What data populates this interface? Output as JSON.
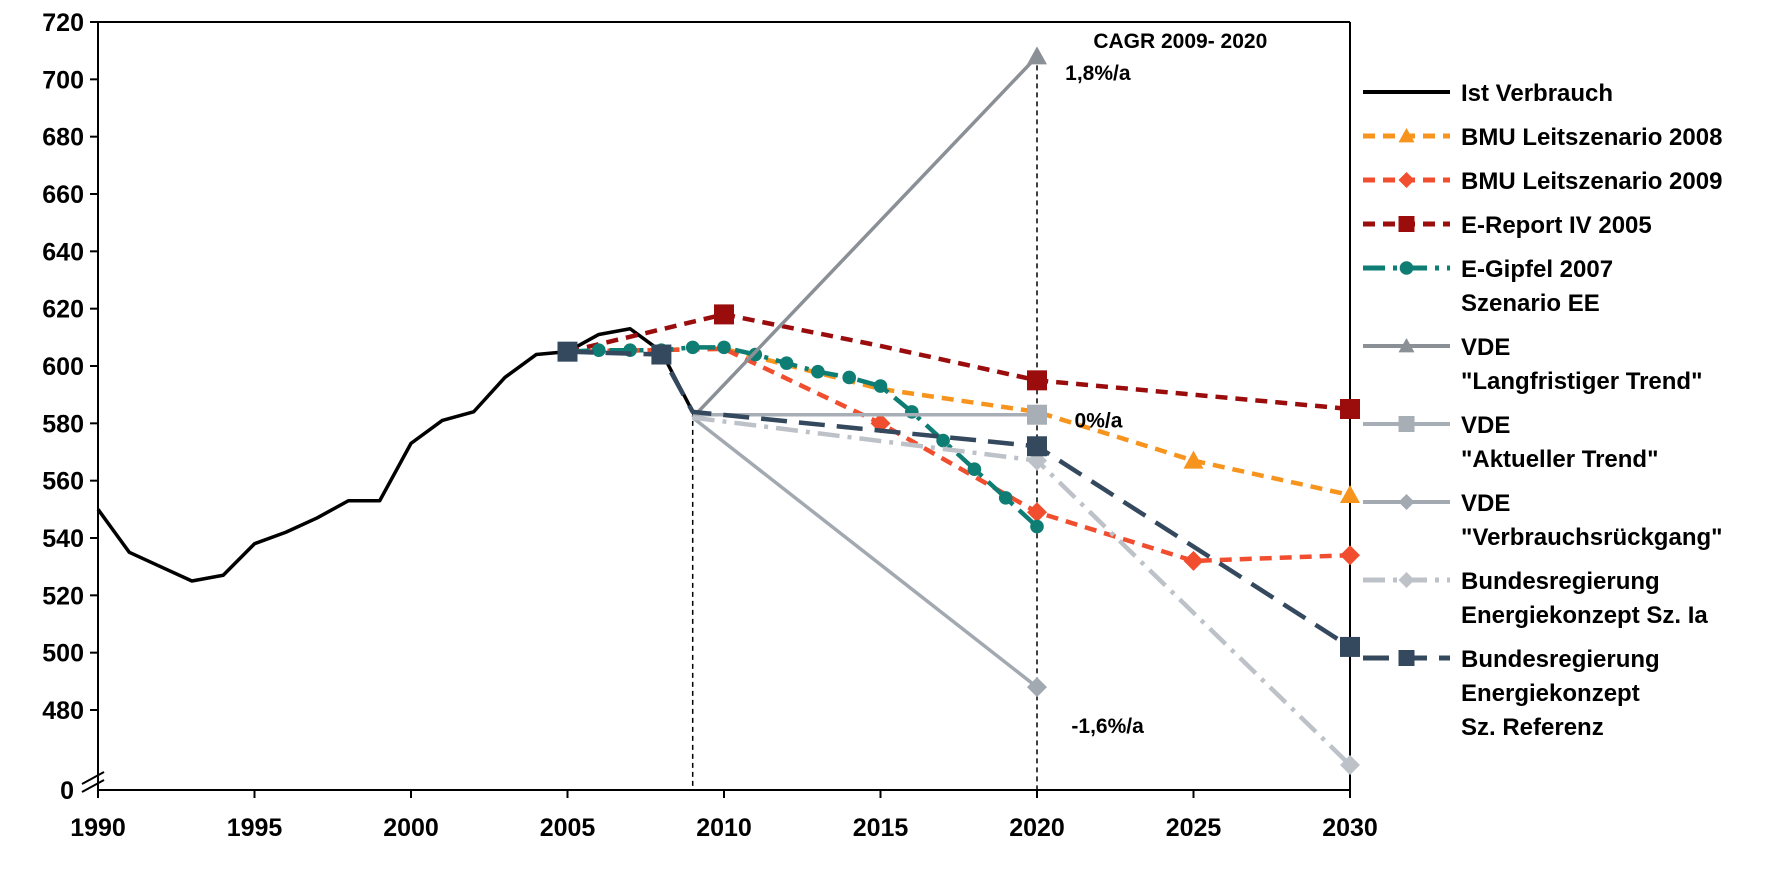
{
  "chart_data": {
    "type": "line",
    "title": "",
    "xlabel": "",
    "ylabel": "",
    "xlim": [
      1990,
      2030
    ],
    "ylim": [
      480,
      720
    ],
    "y_axis_break": {
      "label": "0",
      "note": "axis break between 0 and 480"
    },
    "x_ticks": [
      "1990",
      "1995",
      "2000",
      "2005",
      "2010",
      "2015",
      "2020",
      "2025",
      "2030"
    ],
    "y_ticks": [
      "480",
      "500",
      "520",
      "540",
      "560",
      "580",
      "600",
      "620",
      "640",
      "660",
      "680",
      "700",
      "720"
    ],
    "grid": false,
    "legend_position": "right",
    "vertical_reference_lines": [
      2009,
      2020
    ],
    "series": [
      {
        "name": "Ist Verbrauch",
        "color": "#000000",
        "dash": "solid",
        "marker": "none",
        "x": [
          1990,
          1991,
          1992,
          1993,
          1994,
          1995,
          1996,
          1997,
          1998,
          1999,
          2000,
          2001,
          2002,
          2003,
          2004,
          2005,
          2006,
          2007,
          2008,
          2009
        ],
        "y": [
          550,
          535,
          530,
          525,
          527,
          538,
          542,
          547,
          553,
          553,
          573,
          581,
          584,
          596,
          604,
          605,
          611,
          613,
          605,
          584
        ]
      },
      {
        "name": "BMU Leitszenario 2008",
        "color": "#F7941D",
        "dash": "dash",
        "marker": "triangle",
        "x": [
          2005,
          2010,
          2015,
          2020,
          2025,
          2030
        ],
        "y": [
          605,
          606,
          592,
          584,
          567,
          555
        ],
        "marker_x": [
          2025,
          2030
        ]
      },
      {
        "name": "BMU Leitszenario 2009",
        "color": "#F04E2E",
        "dash": "dash",
        "marker": "diamond",
        "x": [
          2005,
          2010,
          2015,
          2020,
          2025,
          2030
        ],
        "y": [
          605,
          606,
          580,
          549,
          532,
          534
        ],
        "marker_x": [
          2015,
          2020,
          2025,
          2030
        ]
      },
      {
        "name": "E-Report IV 2005",
        "color": "#9B0D0D",
        "dash": "dash",
        "marker": "square",
        "x": [
          2005,
          2010,
          2015,
          2020,
          2025,
          2030
        ],
        "y": [
          605,
          618,
          607,
          595,
          590,
          585
        ],
        "marker_x": [
          2010,
          2020,
          2030
        ]
      },
      {
        "name": "E-Gipfel 2007\nSzenario EE",
        "color": "#0E7D74",
        "dash": "dashdot",
        "marker": "circle",
        "x": [
          2005,
          2006,
          2007,
          2008,
          2009,
          2010,
          2011,
          2012,
          2013,
          2014,
          2015,
          2016,
          2017,
          2018,
          2019,
          2020
        ],
        "y": [
          605,
          605.5,
          605.5,
          605.5,
          606.5,
          606.5,
          604,
          601,
          598,
          596,
          593,
          584,
          574,
          564,
          554,
          544
        ],
        "marker_x": [
          2005,
          2006,
          2007,
          2008,
          2009,
          2010,
          2011,
          2012,
          2013,
          2014,
          2015,
          2016,
          2017,
          2018,
          2019,
          2020
        ]
      },
      {
        "name": "VDE\n\"Langfristiger Trend\"",
        "color": "#8B9097",
        "dash": "solid",
        "marker": "triangle",
        "x": [
          2009,
          2020
        ],
        "y": [
          582,
          708
        ],
        "marker_x": [
          2020
        ]
      },
      {
        "name": "VDE\n\"Aktueller Trend\"",
        "color": "#A7AEB5",
        "dash": "solid",
        "marker": "square",
        "x": [
          2009,
          2020
        ],
        "y": [
          583,
          583
        ],
        "marker_x": [
          2020
        ]
      },
      {
        "name": "VDE\n\"Verbrauchsrückgang\"",
        "color": "#A2A9B1",
        "dash": "solid",
        "marker": "diamond",
        "x": [
          2009,
          2020
        ],
        "y": [
          582,
          488
        ],
        "marker_x": [
          2020
        ]
      },
      {
        "name": "Bundesregierung\nEnergiekonzept Sz. Ia",
        "color": "#BDC2C8",
        "dash": "dashdot",
        "marker": "diamond",
        "x": [
          2009,
          2020,
          2030
        ],
        "y": [
          582,
          567,
          "below_480"
        ],
        "marker_x": [
          2020,
          2030
        ]
      },
      {
        "name": "Bundesregierung\nEnergiekonzept\nSz. Referenz",
        "color": "#34495E",
        "dash": "longdash",
        "marker": "square",
        "x": [
          2005,
          2008,
          2009,
          2020,
          2030
        ],
        "y": [
          605,
          604,
          584,
          572,
          502
        ],
        "marker_x": [
          2005,
          2008,
          2020,
          2030
        ]
      }
    ],
    "annotations": {
      "cagr_title": "CAGR 2009- 2020",
      "rate_up": "1,8%/a",
      "rate_flat": "0%/a",
      "rate_down": "-1,6%/a"
    }
  }
}
